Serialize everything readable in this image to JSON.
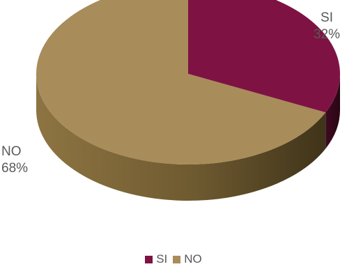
{
  "chart_data": {
    "type": "pie",
    "style": "3d",
    "categories": [
      "SI",
      "NO"
    ],
    "values": [
      32,
      68
    ],
    "data_labels": [
      {
        "category": "SI",
        "percent": "32%"
      },
      {
        "category": "NO",
        "percent": "68%"
      }
    ],
    "colors": [
      "#7E1343",
      "#A88C5A"
    ],
    "legend_position": "bottom",
    "legend": [
      "SI",
      "NO"
    ],
    "title": ""
  }
}
